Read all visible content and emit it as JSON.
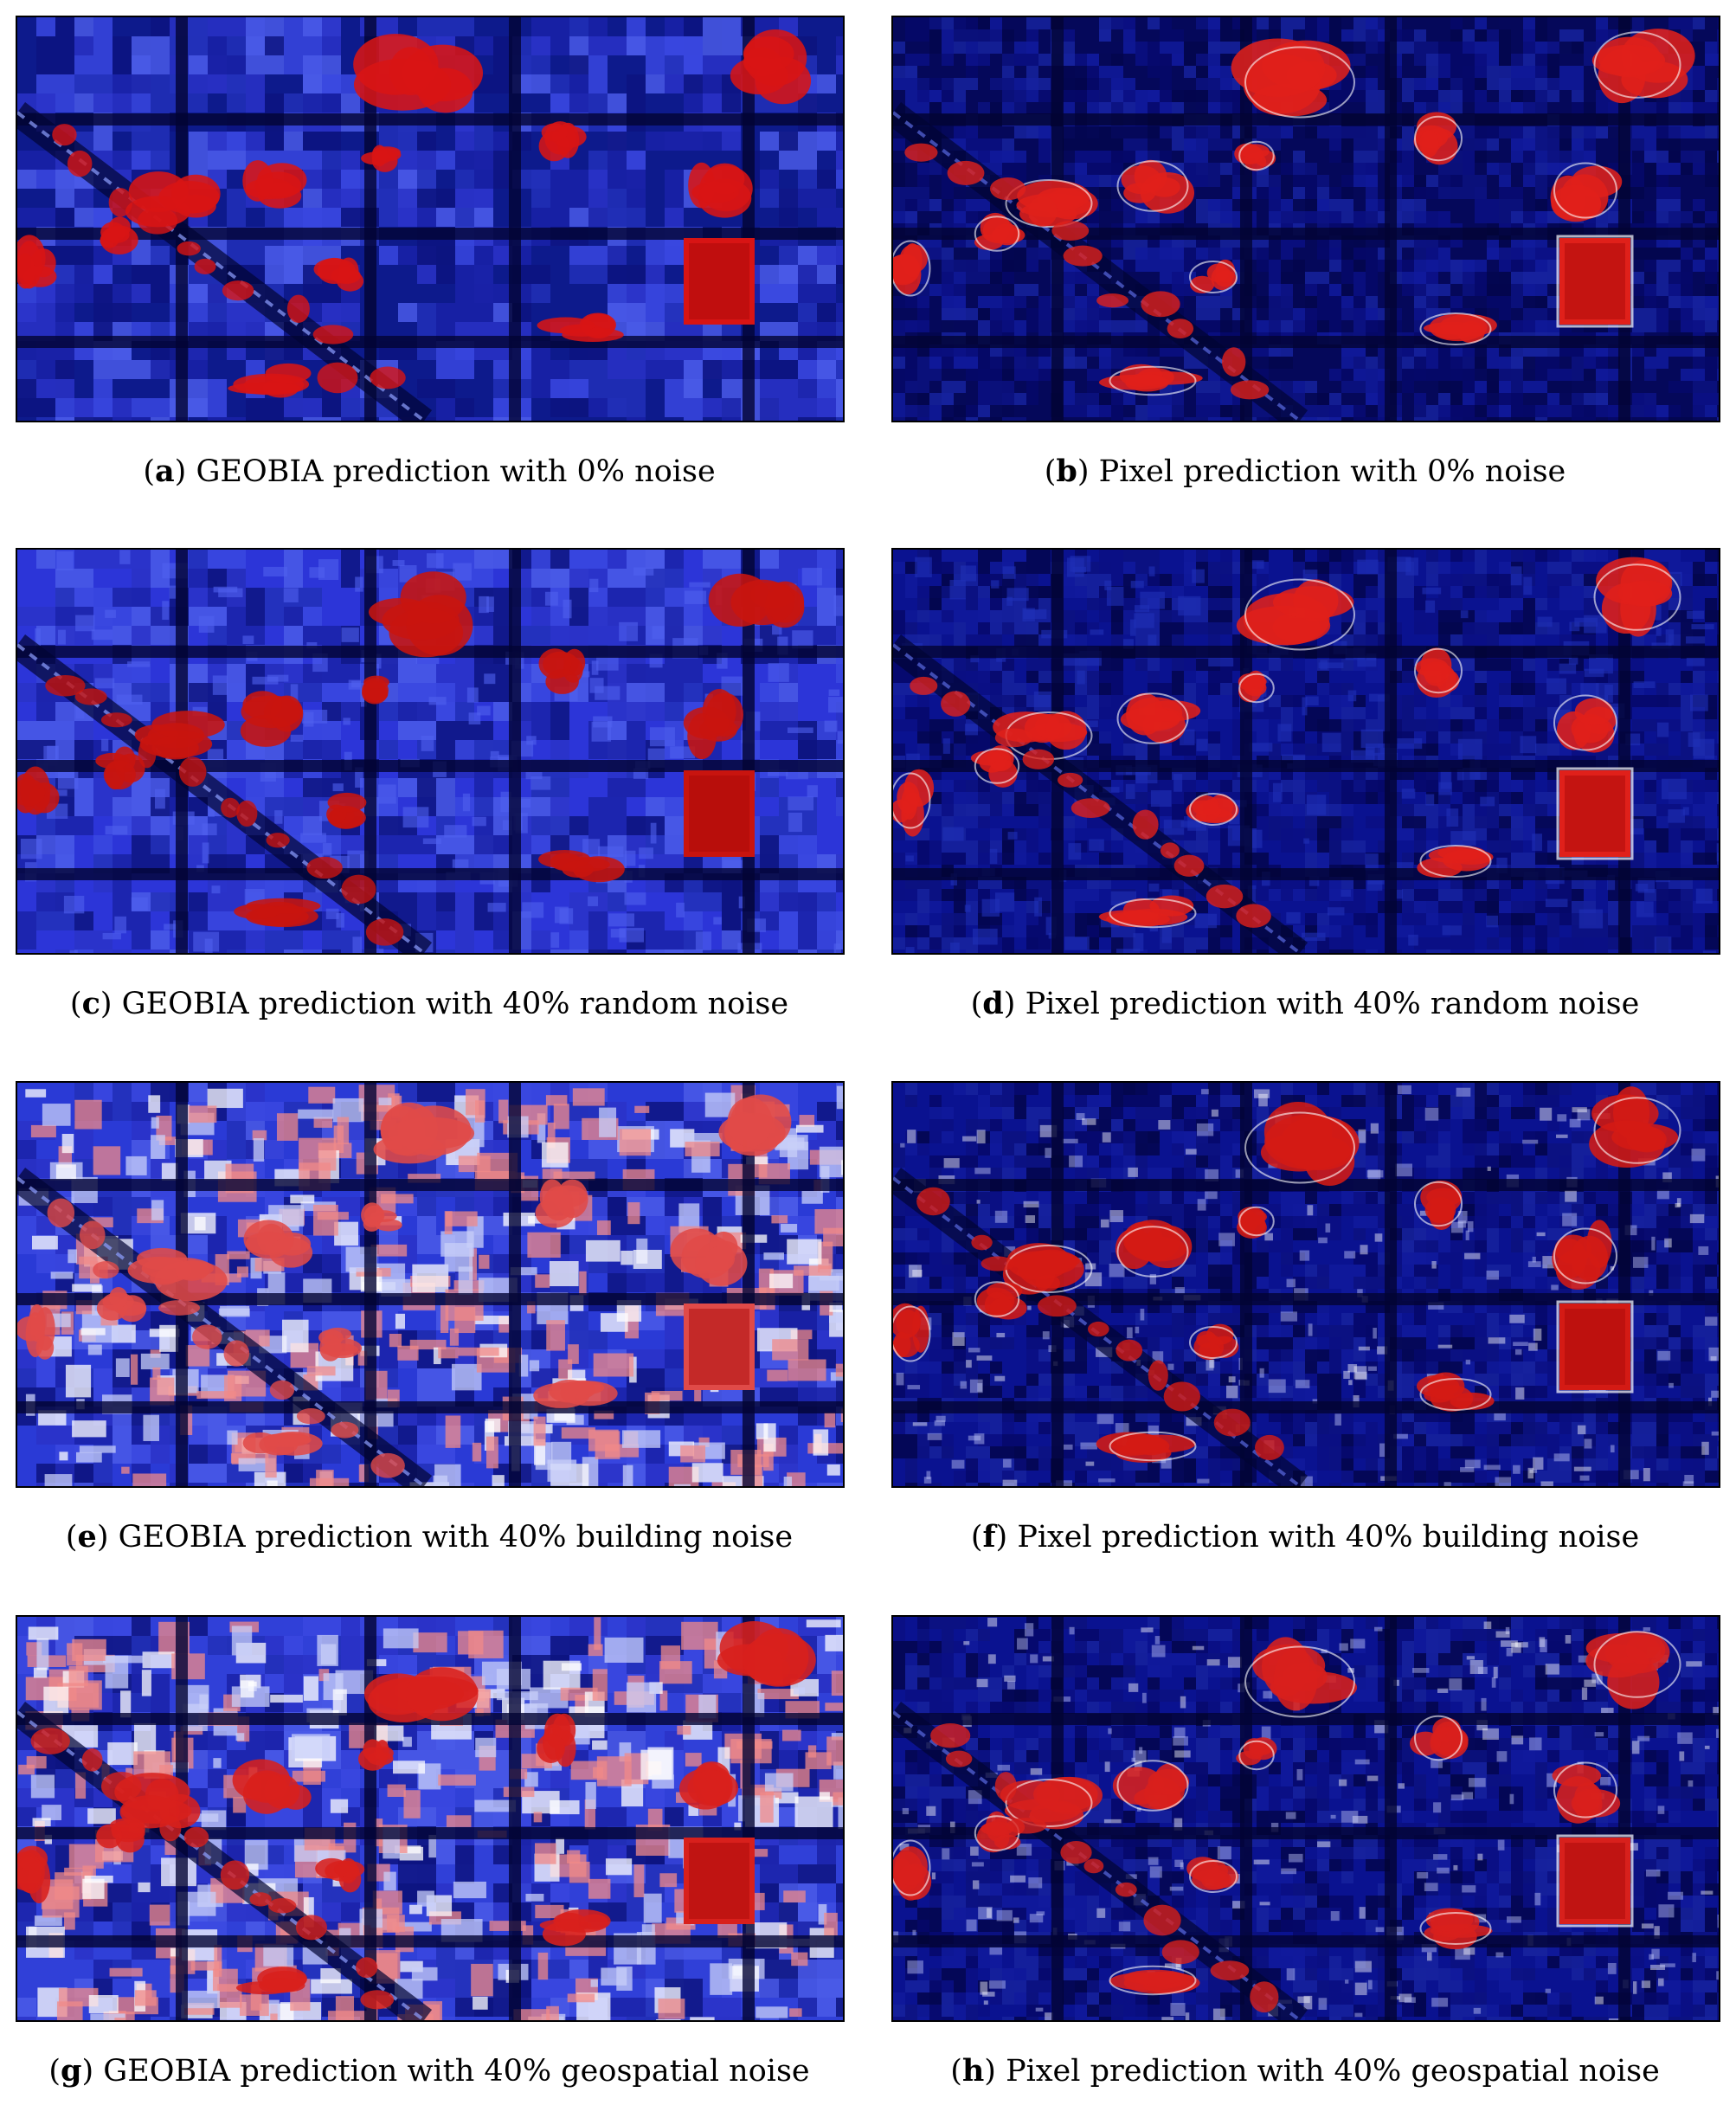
{
  "panels": [
    {
      "letter": "a",
      "caption": " GEOBIA prediction with 0% noise",
      "style": "geobia",
      "noise": "none",
      "colors": {
        "base": "#0d1a8c",
        "accent": "#d81414"
      }
    },
    {
      "letter": "b",
      "caption": " Pixel prediction with 0% noise",
      "style": "pixel",
      "noise": "none",
      "colors": {
        "base": "#05085a",
        "accent": "#e0201a"
      }
    },
    {
      "letter": "c",
      "caption": " GEOBIA prediction with 40% random noise",
      "style": "geobia",
      "noise": "random",
      "colors": {
        "base": "#2c35d8",
        "accent": "#c8140f"
      }
    },
    {
      "letter": "d",
      "caption": " Pixel prediction with 40% random noise",
      "style": "pixel",
      "noise": "random",
      "colors": {
        "base": "#0a1290",
        "accent": "#e0201a"
      }
    },
    {
      "letter": "e",
      "caption": " GEOBIA prediction with 40% building noise",
      "style": "geobia",
      "noise": "building",
      "colors": {
        "base": "#2a3ad6",
        "accent": "#e04a48"
      }
    },
    {
      "letter": "f",
      "caption": " Pixel prediction with 40% building noise",
      "style": "pixel",
      "noise": "building",
      "colors": {
        "base": "#0a1290",
        "accent": "#d41a14"
      }
    },
    {
      "letter": "g",
      "caption": " GEOBIA prediction with 40% geospatial noise",
      "style": "geobia",
      "noise": "geospatial",
      "colors": {
        "base": "#3040d8",
        "accent": "#d8201c"
      }
    },
    {
      "letter": "h",
      "caption": " Pixel prediction with 40% geospatial noise",
      "style": "pixel",
      "noise": "geospatial",
      "colors": {
        "base": "#0a1290",
        "accent": "#d8201c"
      }
    }
  ]
}
